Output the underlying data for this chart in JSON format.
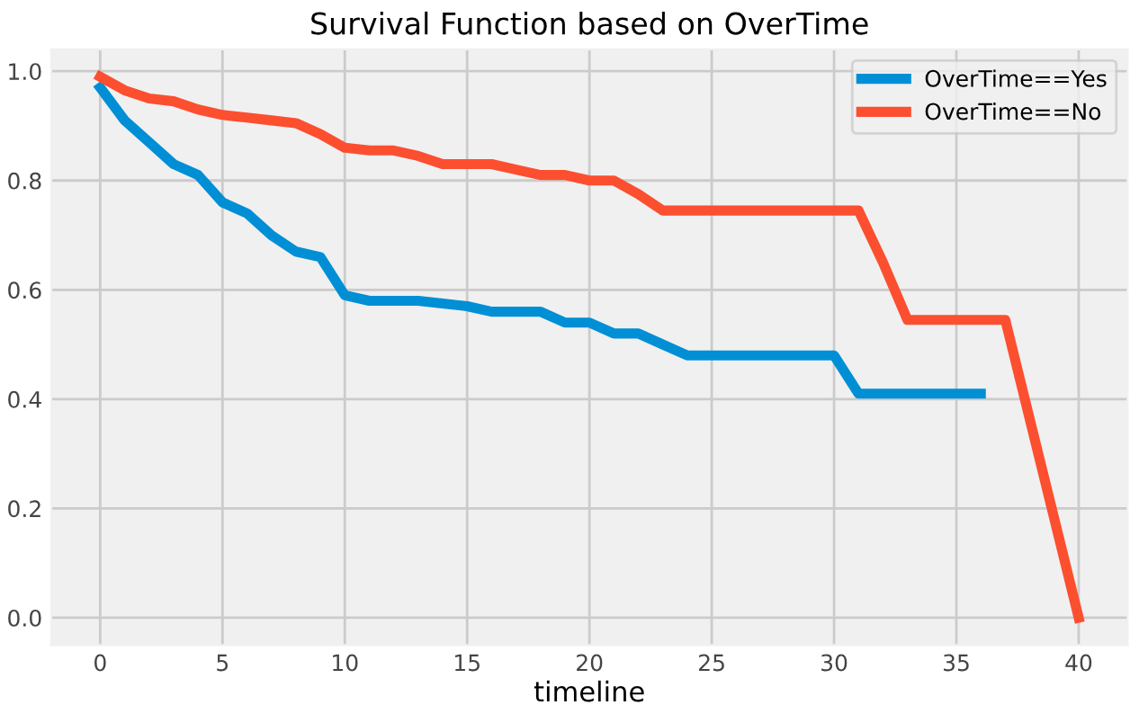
{
  "chart_data": {
    "type": "line",
    "title": "Survival Function based on OverTime",
    "xlabel": "timeline",
    "series": [
      {
        "name": "OverTime==Yes",
        "color": "#008fd5",
        "x": [
          0,
          1,
          2,
          3,
          4,
          5,
          6,
          7,
          8,
          9,
          10,
          11,
          12,
          13,
          14,
          15,
          16,
          17,
          18,
          19,
          20,
          21,
          22,
          23,
          24,
          25,
          26,
          27,
          28,
          29,
          30,
          31,
          32,
          33,
          34,
          35,
          36
        ],
        "values": [
          0.97,
          0.91,
          0.87,
          0.83,
          0.81,
          0.76,
          0.74,
          0.7,
          0.67,
          0.66,
          0.59,
          0.58,
          0.58,
          0.58,
          0.575,
          0.57,
          0.56,
          0.56,
          0.56,
          0.54,
          0.54,
          0.52,
          0.52,
          0.5,
          0.48,
          0.48,
          0.48,
          0.48,
          0.48,
          0.48,
          0.48,
          0.41,
          0.41,
          0.41,
          0.41,
          0.41,
          0.41
        ]
      },
      {
        "name": "OverTime==No",
        "color": "#fc4f30",
        "x": [
          0,
          1,
          2,
          3,
          4,
          5,
          6,
          7,
          8,
          9,
          10,
          11,
          12,
          13,
          14,
          15,
          16,
          17,
          18,
          19,
          20,
          21,
          22,
          23,
          24,
          25,
          26,
          27,
          28,
          29,
          30,
          31,
          32,
          33,
          34,
          35,
          36,
          37,
          40
        ],
        "values": [
          0.99,
          0.965,
          0.95,
          0.945,
          0.93,
          0.92,
          0.915,
          0.91,
          0.905,
          0.885,
          0.86,
          0.855,
          0.855,
          0.845,
          0.83,
          0.83,
          0.83,
          0.82,
          0.81,
          0.81,
          0.8,
          0.8,
          0.775,
          0.745,
          0.745,
          0.745,
          0.745,
          0.745,
          0.745,
          0.745,
          0.745,
          0.745,
          0.65,
          0.545,
          0.545,
          0.545,
          0.545,
          0.545,
          0.0
        ]
      }
    ],
    "xlim": [
      -2,
      42
    ],
    "ylim": [
      -0.05,
      1.04
    ],
    "xticks": [
      0,
      5,
      10,
      15,
      20,
      25,
      30,
      35,
      40
    ],
    "yticks": [
      {
        "value": 0,
        "label": "0.0"
      },
      {
        "value": 0.2,
        "label": "0.2"
      },
      {
        "value": 0.4,
        "label": "0.4"
      },
      {
        "value": 0.6,
        "label": "0.6"
      },
      {
        "value": 0.8,
        "label": "0.8"
      },
      {
        "value": 1,
        "label": "1.0"
      }
    ],
    "grid": true,
    "legend": "top right"
  }
}
